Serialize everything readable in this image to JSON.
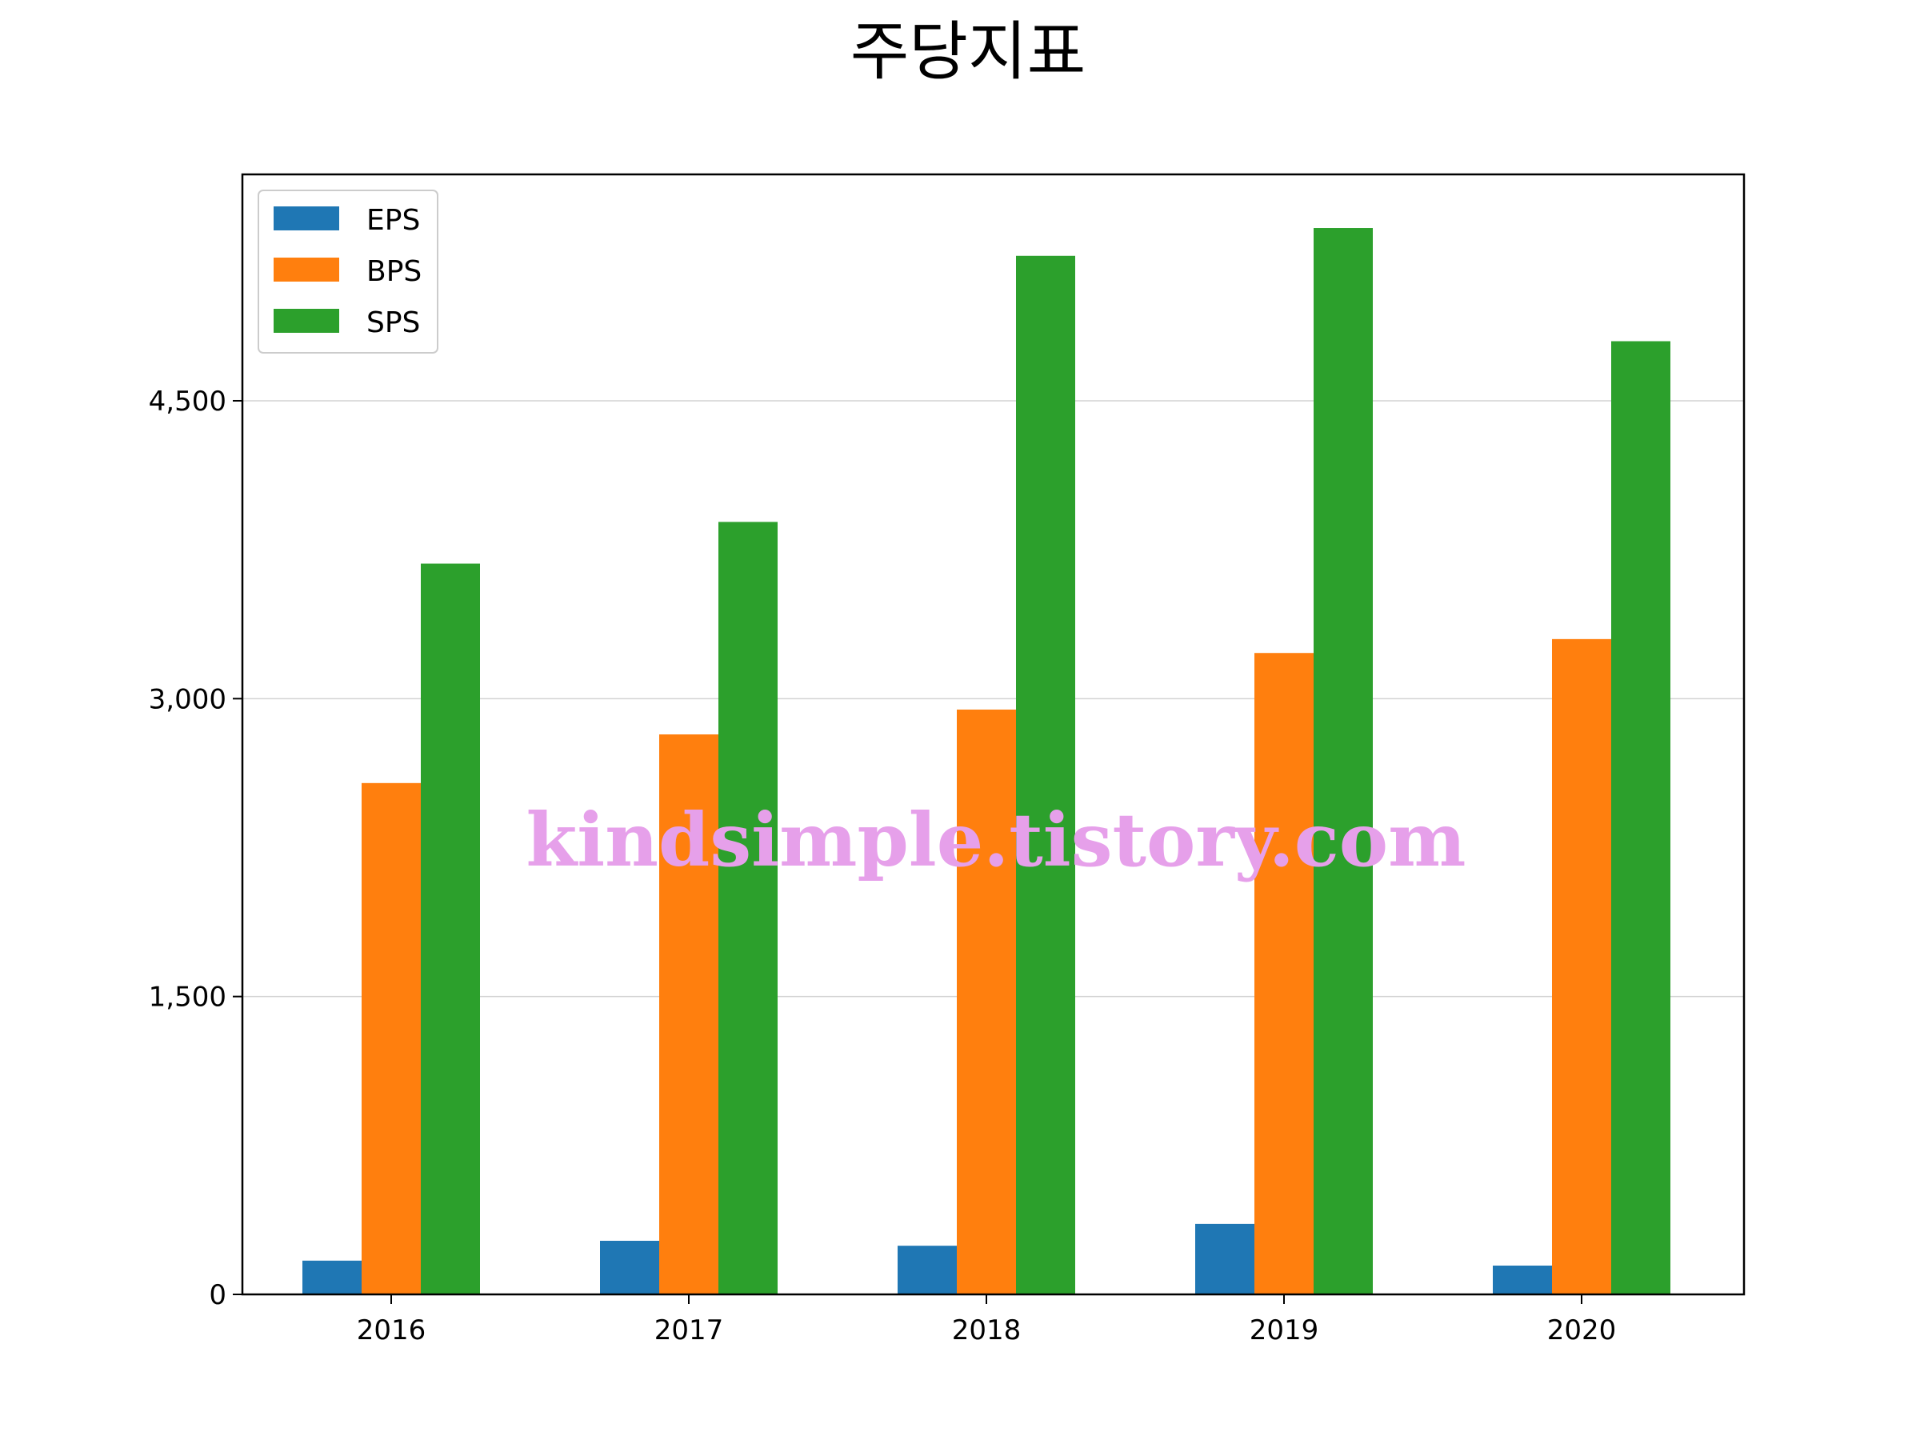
{
  "chart_data": {
    "type": "bar",
    "title": "주당지표",
    "xlabel": "",
    "ylabel": "",
    "categories": [
      "2016",
      "2017",
      "2018",
      "2019",
      "2020"
    ],
    "series": [
      {
        "name": "EPS",
        "color": "#1f77b4",
        "values": [
          170,
          270,
          245,
          355,
          145
        ]
      },
      {
        "name": "BPS",
        "color": "#ff7f0e",
        "values": [
          2575,
          2820,
          2945,
          3230,
          3300
        ]
      },
      {
        "name": "SPS",
        "color": "#2ca02c",
        "values": [
          3680,
          3890,
          5230,
          5370,
          4800
        ]
      }
    ],
    "yticks": [
      0,
      1500,
      3000,
      4500
    ],
    "ytick_labels": [
      "0",
      "1,500",
      "3,000",
      "4,500"
    ],
    "ylim": [
      0,
      5640
    ],
    "grid": "y",
    "legend_position": "top-left"
  },
  "watermark": "kindsimple.tistory.com"
}
